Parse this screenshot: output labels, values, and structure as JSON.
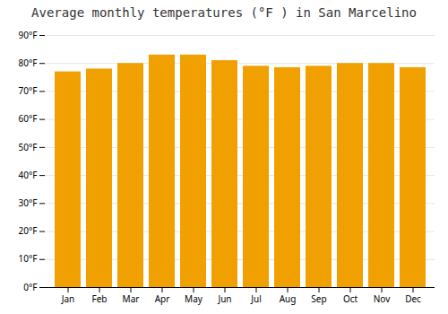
{
  "chart_data": {
    "type": "bar",
    "title": "Average monthly temperatures (°F ) in San Marcelino",
    "categories": [
      "Jan",
      "Feb",
      "Mar",
      "Apr",
      "May",
      "Jun",
      "Jul",
      "Aug",
      "Sep",
      "Oct",
      "Nov",
      "Dec"
    ],
    "values": [
      77.0,
      78.0,
      80.0,
      83.0,
      83.0,
      81.0,
      79.0,
      78.5,
      79.0,
      80.0,
      80.0,
      78.5
    ],
    "color": "#F0A000",
    "ylim": [
      0,
      90
    ],
    "yticks": [
      {
        "value": 0,
        "label": "0°F"
      },
      {
        "value": 10,
        "label": "10°F"
      },
      {
        "value": 20,
        "label": "20°F"
      },
      {
        "value": 30,
        "label": "30°F"
      },
      {
        "value": 40,
        "label": "40°F"
      },
      {
        "value": 50,
        "label": "50°F"
      },
      {
        "value": 60,
        "label": "60°F"
      },
      {
        "value": 70,
        "label": "70°F"
      },
      {
        "value": 80,
        "label": "80°F"
      },
      {
        "value": 90,
        "label": "90°F"
      }
    ],
    "grid": true
  }
}
